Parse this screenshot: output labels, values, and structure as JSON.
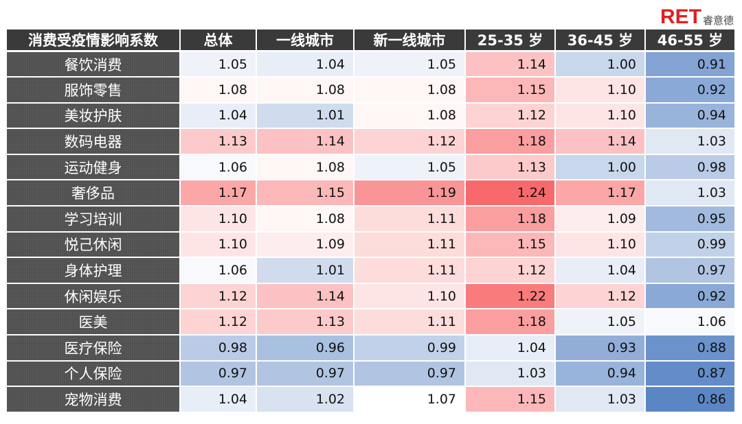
{
  "logo": {
    "mark": "RET",
    "text": "睿意德"
  },
  "chart_data": {
    "type": "heatmap",
    "corner_label": "消费受疫情影响系数",
    "columns": [
      "总体",
      "一线城市",
      "新一线城市",
      "25-35 岁",
      "36-45 岁",
      "46-55 岁"
    ],
    "rows": [
      "餐饮消费",
      "服饰零售",
      "美妆护肤",
      "数码电器",
      "运动健身",
      "奢侈品",
      "学习培训",
      "悦己休闲",
      "身体护理",
      "休闲娱乐",
      "医美",
      "医疗保险",
      "个人保险",
      "宠物消费"
    ],
    "values": [
      [
        "1.05",
        "1.04",
        "1.05",
        "1.14",
        "1.00",
        "0.91"
      ],
      [
        "1.08",
        "1.08",
        "1.08",
        "1.15",
        "1.10",
        "0.92"
      ],
      [
        "1.04",
        "1.01",
        "1.08",
        "1.12",
        "1.10",
        "0.94"
      ],
      [
        "1.13",
        "1.14",
        "1.12",
        "1.18",
        "1.14",
        "1.03"
      ],
      [
        "1.06",
        "1.08",
        "1.05",
        "1.13",
        "1.00",
        "0.98"
      ],
      [
        "1.17",
        "1.15",
        "1.19",
        "1.24",
        "1.17",
        "1.03"
      ],
      [
        "1.10",
        "1.08",
        "1.11",
        "1.18",
        "1.09",
        "0.95"
      ],
      [
        "1.10",
        "1.09",
        "1.11",
        "1.15",
        "1.10",
        "0.99"
      ],
      [
        "1.06",
        "1.01",
        "1.11",
        "1.12",
        "1.04",
        "0.97"
      ],
      [
        "1.12",
        "1.14",
        "1.10",
        "1.22",
        "1.12",
        "0.92"
      ],
      [
        "1.12",
        "1.13",
        "1.11",
        "1.18",
        "1.05",
        "1.06"
      ],
      [
        "0.98",
        "0.96",
        "0.99",
        "1.04",
        "0.93",
        "0.88"
      ],
      [
        "0.97",
        "0.97",
        "0.97",
        "1.03",
        "0.94",
        "0.87"
      ],
      [
        "1.04",
        "1.02",
        "1.07",
        "1.15",
        "1.03",
        "0.86"
      ]
    ],
    "color_scale": {
      "low": "#5b86c5",
      "mid": "#ffffff",
      "high": "#f8696b"
    }
  }
}
